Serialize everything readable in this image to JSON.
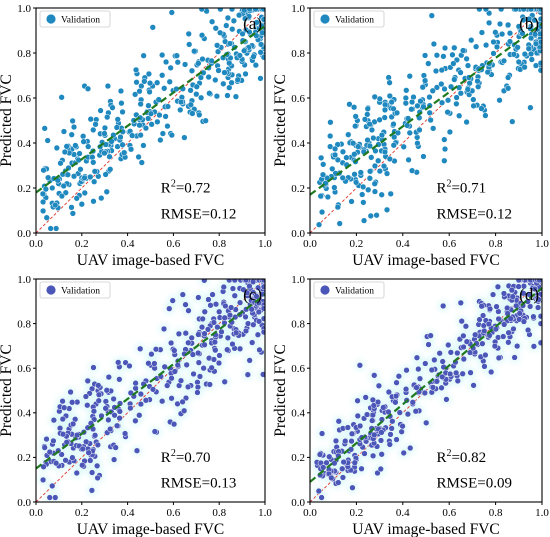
{
  "chart_data": [
    {
      "type": "scatter",
      "panel_label": "(a)",
      "xlabel": "UAV image-based FVC",
      "ylabel": "Predicted FVC",
      "xlim": [
        0,
        1
      ],
      "ylim": [
        0,
        1
      ],
      "x_ticks": [
        "0.0",
        "0.2",
        "0.4",
        "0.6",
        "0.8",
        "1.0"
      ],
      "y_ticks": [
        "0.0",
        "0.2",
        "0.4",
        "0.6",
        "0.8",
        "1.0"
      ],
      "legend": {
        "label": "Validation",
        "placement": "top-left"
      },
      "point_color": "#1f88bf",
      "glow_color": "",
      "stats": {
        "r2_prefix": "R",
        "r2_exp": "2",
        "r2_value": "=0.72",
        "rmse": "RMSE=0.12"
      },
      "fit_line": {
        "intercept": 0.18,
        "slope": 0.74,
        "color": "#1f7a1f",
        "style": "dashed"
      },
      "identity_line": {
        "color": "#e0342a",
        "style": "dashed"
      },
      "seed": 11,
      "n_points": 400,
      "noise": 0.11
    },
    {
      "type": "scatter",
      "panel_label": "(b)",
      "xlabel": "UAV image-based FVC",
      "ylabel": "Predicted FVC",
      "xlim": [
        0,
        1
      ],
      "ylim": [
        0,
        1
      ],
      "x_ticks": [
        "0.0",
        "0.2",
        "0.4",
        "0.6",
        "0.8",
        "1.0"
      ],
      "y_ticks": [
        "0.0",
        "0.2",
        "0.4",
        "0.6",
        "0.8",
        "1.0"
      ],
      "legend": {
        "label": "Validation",
        "placement": "top-left"
      },
      "point_color": "#1f88bf",
      "glow_color": "",
      "stats": {
        "r2_prefix": "R",
        "r2_exp": "2",
        "r2_value": "=0.71",
        "rmse": "RMSE=0.12"
      },
      "fit_line": {
        "intercept": 0.17,
        "slope": 0.76,
        "color": "#1f7a1f",
        "style": "dashed"
      },
      "identity_line": {
        "color": "#e0342a",
        "style": "dashed"
      },
      "seed": 23,
      "n_points": 400,
      "noise": 0.115
    },
    {
      "type": "scatter",
      "panel_label": "(c)",
      "xlabel": "UAV image-based FVC",
      "ylabel": "Predicted FVC",
      "xlim": [
        0,
        1
      ],
      "ylim": [
        0,
        1
      ],
      "x_ticks": [
        "0.0",
        "0.2",
        "0.4",
        "0.6",
        "0.8",
        "1.0"
      ],
      "y_ticks": [
        "0.0",
        "0.2",
        "0.4",
        "0.6",
        "0.8",
        "1.0"
      ],
      "legend": {
        "label": "Validation",
        "placement": "top-left"
      },
      "point_color": "#4a56b8",
      "glow_color": "#bff3f3",
      "stats": {
        "r2_prefix": "R",
        "r2_exp": "2",
        "r2_value": "=0.70",
        "rmse": "RMSE=0.13"
      },
      "fit_line": {
        "intercept": 0.15,
        "slope": 0.78,
        "color": "#1f7a1f",
        "style": "dashed"
      },
      "identity_line": {
        "color": "#e0342a",
        "style": "dashed"
      },
      "seed": 37,
      "n_points": 400,
      "noise": 0.12
    },
    {
      "type": "scatter",
      "panel_label": "(d)",
      "xlabel": "UAV image-based FVC",
      "ylabel": "Predicted FVC",
      "xlim": [
        0,
        1
      ],
      "ylim": [
        0,
        1
      ],
      "x_ticks": [
        "0.0",
        "0.2",
        "0.4",
        "0.6",
        "0.8",
        "1.0"
      ],
      "y_ticks": [
        "0.0",
        "0.2",
        "0.4",
        "0.6",
        "0.8",
        "1.0"
      ],
      "legend": {
        "label": "Validation",
        "placement": "top-left"
      },
      "point_color": "#4a56b8",
      "glow_color": "#bff3f3",
      "stats": {
        "r2_prefix": "R",
        "r2_exp": "2",
        "r2_value": "=0.82",
        "rmse": "RMSE=0.09"
      },
      "fit_line": {
        "intercept": 0.09,
        "slope": 0.87,
        "color": "#1f7a1f",
        "style": "dashed"
      },
      "identity_line": {
        "color": "#e0342a",
        "style": "dashed"
      },
      "seed": 53,
      "n_points": 400,
      "noise": 0.085
    }
  ]
}
